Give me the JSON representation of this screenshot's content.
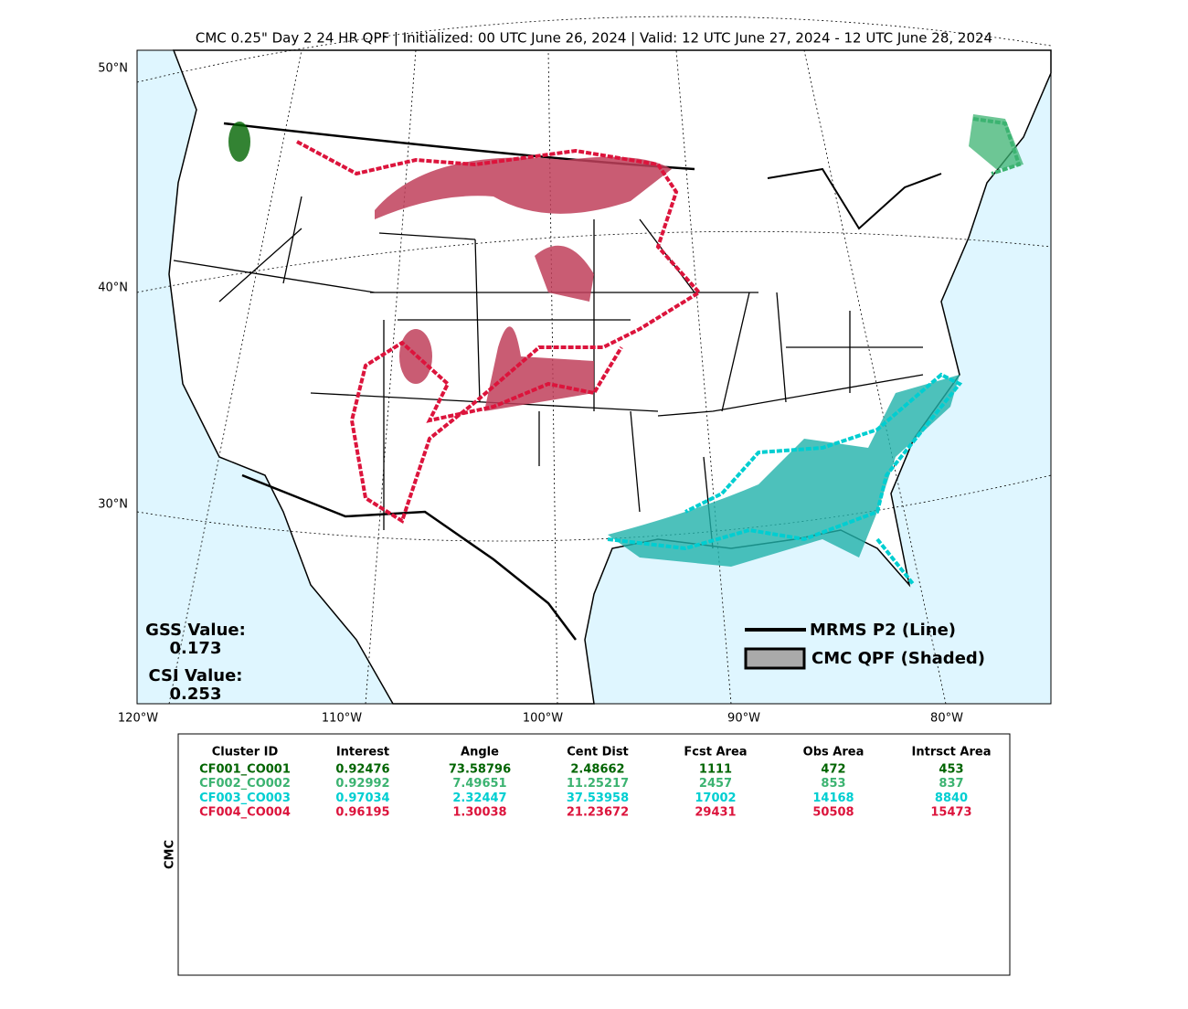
{
  "title": "CMC 0.25\" Day 2 24 HR QPF | Initialized: 00 UTC June 26, 2024 | Valid: 12 UTC June 27, 2024 - 12 UTC June 28, 2024",
  "map": {
    "lat_labels": [
      "50°N",
      "40°N",
      "30°N"
    ],
    "lon_labels": [
      "120°W",
      "110°W",
      "100°W",
      "90°W",
      "80°W"
    ],
    "scores": [
      {
        "label": "GSS Value:",
        "value": "0.173"
      },
      {
        "label": "CSI Value:",
        "value": "0.253"
      }
    ],
    "legend": [
      "MRMS P2 (Line)",
      "CMC QPF (Shaded)"
    ]
  },
  "table": {
    "row_label": "CMC",
    "columns": [
      "Cluster ID",
      "Interest",
      "Angle",
      "Cent Dist",
      "Fcst Area",
      "Obs Area",
      "Intrsct Area"
    ],
    "rows": [
      {
        "color": "#006400",
        "cells": [
          "CF001_CO001",
          0.92476,
          73.58796,
          2.48662,
          1111,
          472,
          453
        ]
      },
      {
        "color": "#3cb371",
        "cells": [
          "CF002_CO002",
          0.92992,
          7.49651,
          11.25217,
          2457,
          853,
          837
        ]
      },
      {
        "color": "#00ced1",
        "cells": [
          "CF003_CO003",
          0.97034,
          2.32447,
          37.53958,
          17002,
          14168,
          8840
        ]
      },
      {
        "color": "#dc143c",
        "cells": [
          "CF004_CO004",
          0.96195,
          1.30038,
          21.23672,
          29431,
          50508,
          15473
        ]
      }
    ]
  }
}
